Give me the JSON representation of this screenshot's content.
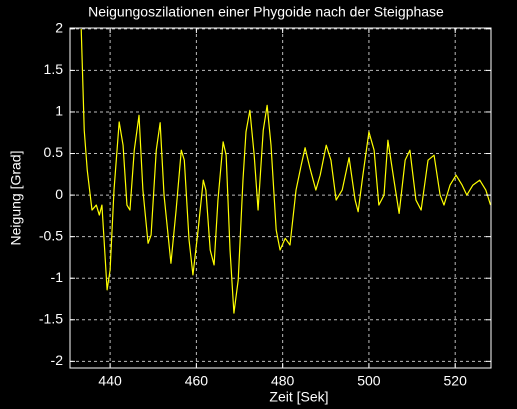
{
  "chart_data": {
    "type": "line",
    "title": "Neigungoszilationen einer Phygoide nach der Steigphase",
    "x_label": "Zeit [Sek]",
    "y_label": "Neigung [Grad]",
    "x": [
      433.3,
      434.0,
      434.7,
      435.8,
      436.8,
      437.5,
      438.1,
      438.6,
      439.3,
      440.0,
      440.9,
      442.1,
      443.0,
      443.9,
      444.6,
      445.6,
      446.7,
      447.6,
      448.8,
      449.5,
      450.7,
      451.6,
      452.5,
      454.1,
      455.3,
      456.5,
      457.2,
      458.3,
      459.2,
      460.4,
      461.6,
      462.2,
      463.2,
      464.1,
      465.0,
      466.2,
      466.9,
      467.8,
      468.7,
      469.7,
      470.8,
      471.5,
      472.4,
      473.4,
      474.3,
      475.5,
      476.4,
      477.3,
      478.5,
      479.4,
      480.6,
      481.7,
      483.1,
      484.3,
      485.2,
      486.3,
      487.7,
      488.7,
      490.1,
      491.2,
      492.4,
      493.8,
      495.4,
      496.8,
      497.5,
      498.6,
      500.0,
      501.2,
      502.3,
      503.5,
      504.4,
      505.8,
      507.0,
      508.4,
      509.5,
      510.9,
      512.1,
      513.7,
      515.1,
      516.5,
      517.4,
      518.8,
      520.2,
      521.6,
      522.7,
      524.1,
      525.7,
      527.1,
      528.2
    ],
    "series": [
      {
        "name": "Neigung",
        "color": "#ffff00",
        "values": [
          2.0,
          0.78,
          0.3,
          -0.18,
          -0.12,
          -0.24,
          -0.12,
          -0.54,
          -1.14,
          -0.9,
          0.06,
          0.88,
          0.6,
          -0.12,
          -0.18,
          0.54,
          0.96,
          0.06,
          -0.58,
          -0.48,
          0.54,
          0.87,
          0,
          -0.82,
          -0.18,
          0.54,
          0.42,
          -0.54,
          -0.96,
          -0.42,
          0.18,
          0.06,
          -0.66,
          -0.84,
          -0.06,
          0.64,
          0.48,
          -0.66,
          -1.42,
          -1.02,
          0.18,
          0.76,
          1.02,
          0.48,
          -0.18,
          0.78,
          1.08,
          0.6,
          -0.42,
          -0.66,
          -0.52,
          -0.6,
          0.06,
          0.36,
          0.57,
          0.33,
          0.06,
          0.24,
          0.6,
          0.42,
          -0.06,
          0.06,
          0.45,
          -0.06,
          -0.2,
          0.24,
          0.76,
          0.54,
          -0.12,
          0,
          0.66,
          0.18,
          -0.22,
          0.42,
          0.54,
          -0.06,
          -0.18,
          0.42,
          0.48,
          0,
          -0.12,
          0.12,
          0.24,
          0.12,
          0,
          0.12,
          0.18,
          0.06,
          -0.12
        ]
      }
    ],
    "xlim": [
      430.7,
      528.3
    ],
    "ylim": [
      -2.08,
      2.01
    ],
    "xticks": [
      440,
      460,
      480,
      500,
      520
    ],
    "yticks": [
      -2,
      -1.5,
      -1,
      -0.5,
      0,
      0.5,
      1,
      1.5,
      2
    ],
    "grid": true
  }
}
